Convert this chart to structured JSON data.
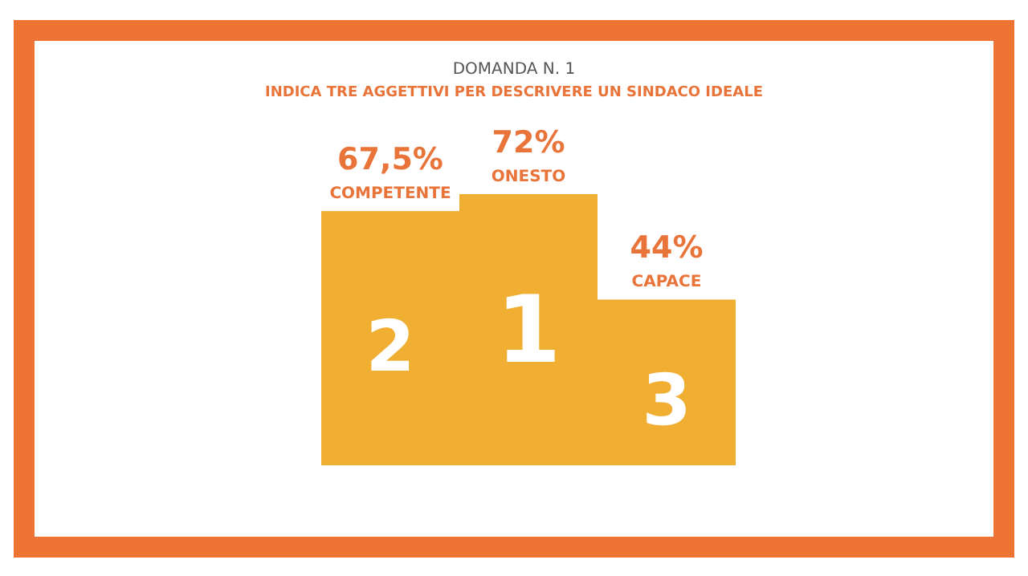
{
  "chart_data": {
    "type": "bar",
    "title": "DOMANDA N. 1",
    "subtitle": "INDICA TRE AGGETTIVI PER DESCRIVERE UN SINDACO IDEALE",
    "categories": [
      "COMPETENTE",
      "ONESTO",
      "CAPACE"
    ],
    "values": [
      67.5,
      72,
      44
    ],
    "value_labels": [
      "67,5%",
      "72%",
      "44%"
    ],
    "color": "#f0ae33",
    "annotations": [
      "2",
      "1",
      "3"
    ]
  }
}
